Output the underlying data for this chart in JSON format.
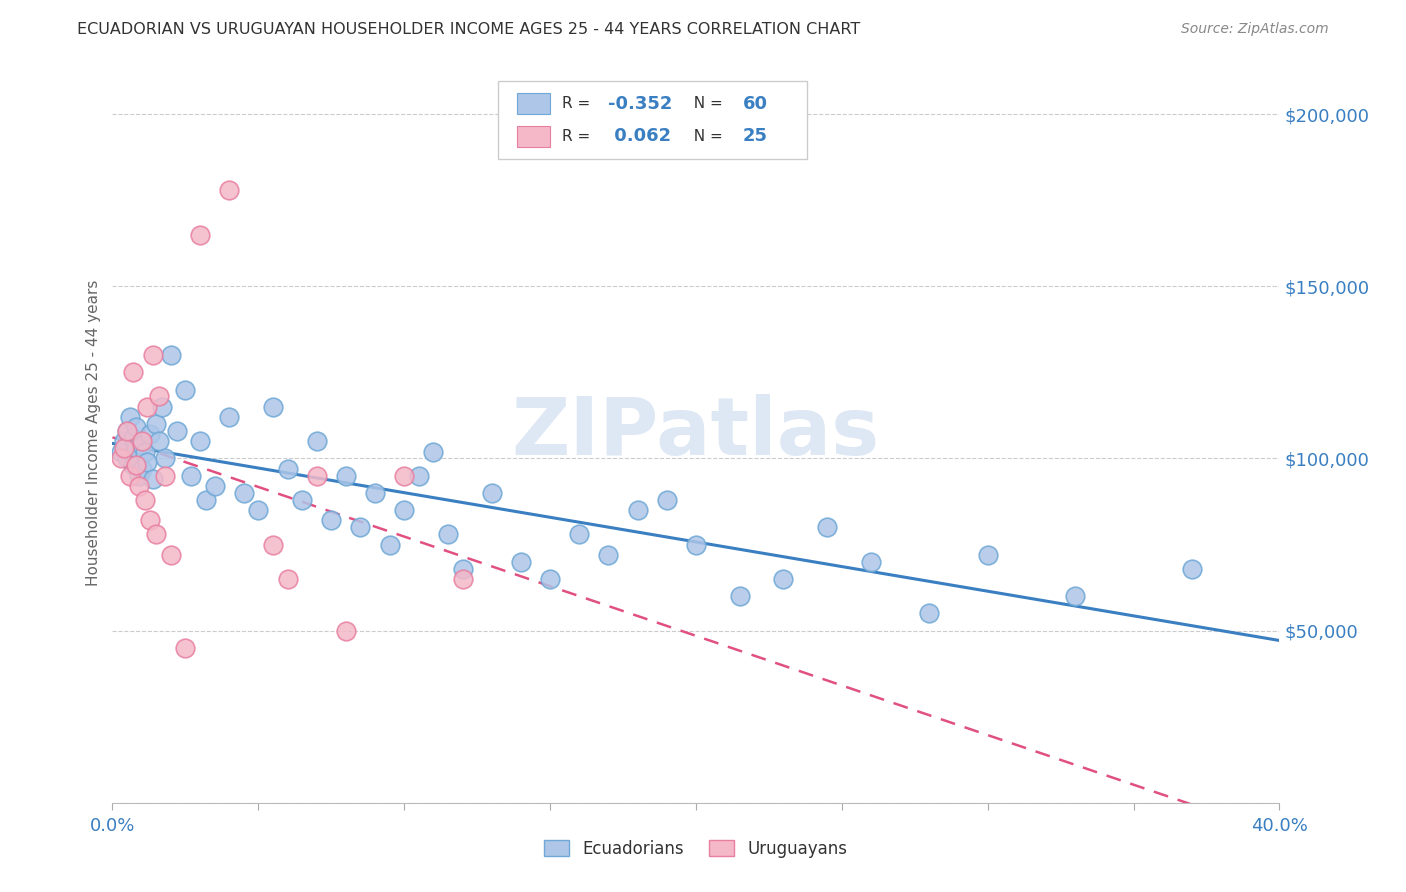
{
  "title": "ECUADORIAN VS URUGUAYAN HOUSEHOLDER INCOME AGES 25 - 44 YEARS CORRELATION CHART",
  "source": "Source: ZipAtlas.com",
  "ylabel": "Householder Income Ages 25 - 44 years",
  "xlim": [
    0.0,
    0.4
  ],
  "ylim": [
    0,
    215000
  ],
  "xticks": [
    0.0,
    0.05,
    0.1,
    0.15,
    0.2,
    0.25,
    0.3,
    0.35,
    0.4
  ],
  "ytick_values": [
    0,
    50000,
    100000,
    150000,
    200000
  ],
  "ytick_labels": [
    "",
    "$50,000",
    "$100,000",
    "$150,000",
    "$200,000"
  ],
  "blue_R": -0.352,
  "blue_N": 60,
  "pink_R": 0.062,
  "pink_N": 25,
  "blue_color": "#aec6e8",
  "pink_color": "#f4b8c8",
  "blue_edge_color": "#6fa8d6",
  "pink_edge_color": "#e87fa0",
  "blue_line_color": "#3a7fc1",
  "pink_line_color": "#e05080",
  "axis_label_color": "#3a7fc1",
  "watermark_color": "#c8d8ee",
  "watermark_text": "ZIPatlas",
  "background_color": "#ffffff",
  "ecuadorians_x": [
    0.003,
    0.004,
    0.005,
    0.005,
    0.006,
    0.007,
    0.007,
    0.008,
    0.008,
    0.009,
    0.01,
    0.01,
    0.011,
    0.012,
    0.013,
    0.014,
    0.015,
    0.016,
    0.017,
    0.018,
    0.02,
    0.022,
    0.025,
    0.027,
    0.03,
    0.032,
    0.035,
    0.04,
    0.045,
    0.05,
    0.055,
    0.06,
    0.065,
    0.07,
    0.075,
    0.08,
    0.085,
    0.09,
    0.095,
    0.1,
    0.105,
    0.11,
    0.115,
    0.12,
    0.13,
    0.14,
    0.15,
    0.16,
    0.17,
    0.18,
    0.19,
    0.2,
    0.215,
    0.23,
    0.245,
    0.26,
    0.28,
    0.3,
    0.33,
    0.37
  ],
  "ecuadorians_y": [
    102000,
    105000,
    108000,
    100000,
    112000,
    106000,
    98000,
    103000,
    109000,
    95000,
    104000,
    97000,
    102000,
    99000,
    107000,
    94000,
    110000,
    105000,
    115000,
    100000,
    130000,
    108000,
    120000,
    95000,
    105000,
    88000,
    92000,
    112000,
    90000,
    85000,
    115000,
    97000,
    88000,
    105000,
    82000,
    95000,
    80000,
    90000,
    75000,
    85000,
    95000,
    102000,
    78000,
    68000,
    90000,
    70000,
    65000,
    78000,
    72000,
    85000,
    88000,
    75000,
    60000,
    65000,
    80000,
    70000,
    55000,
    72000,
    60000,
    68000
  ],
  "uruguayans_x": [
    0.003,
    0.004,
    0.005,
    0.006,
    0.007,
    0.008,
    0.009,
    0.01,
    0.011,
    0.012,
    0.013,
    0.014,
    0.015,
    0.016,
    0.018,
    0.02,
    0.025,
    0.03,
    0.04,
    0.055,
    0.06,
    0.07,
    0.08,
    0.1,
    0.12
  ],
  "uruguayans_y": [
    100000,
    103000,
    108000,
    95000,
    125000,
    98000,
    92000,
    105000,
    88000,
    115000,
    82000,
    130000,
    78000,
    118000,
    95000,
    72000,
    45000,
    165000,
    178000,
    75000,
    65000,
    95000,
    50000,
    95000,
    65000
  ]
}
